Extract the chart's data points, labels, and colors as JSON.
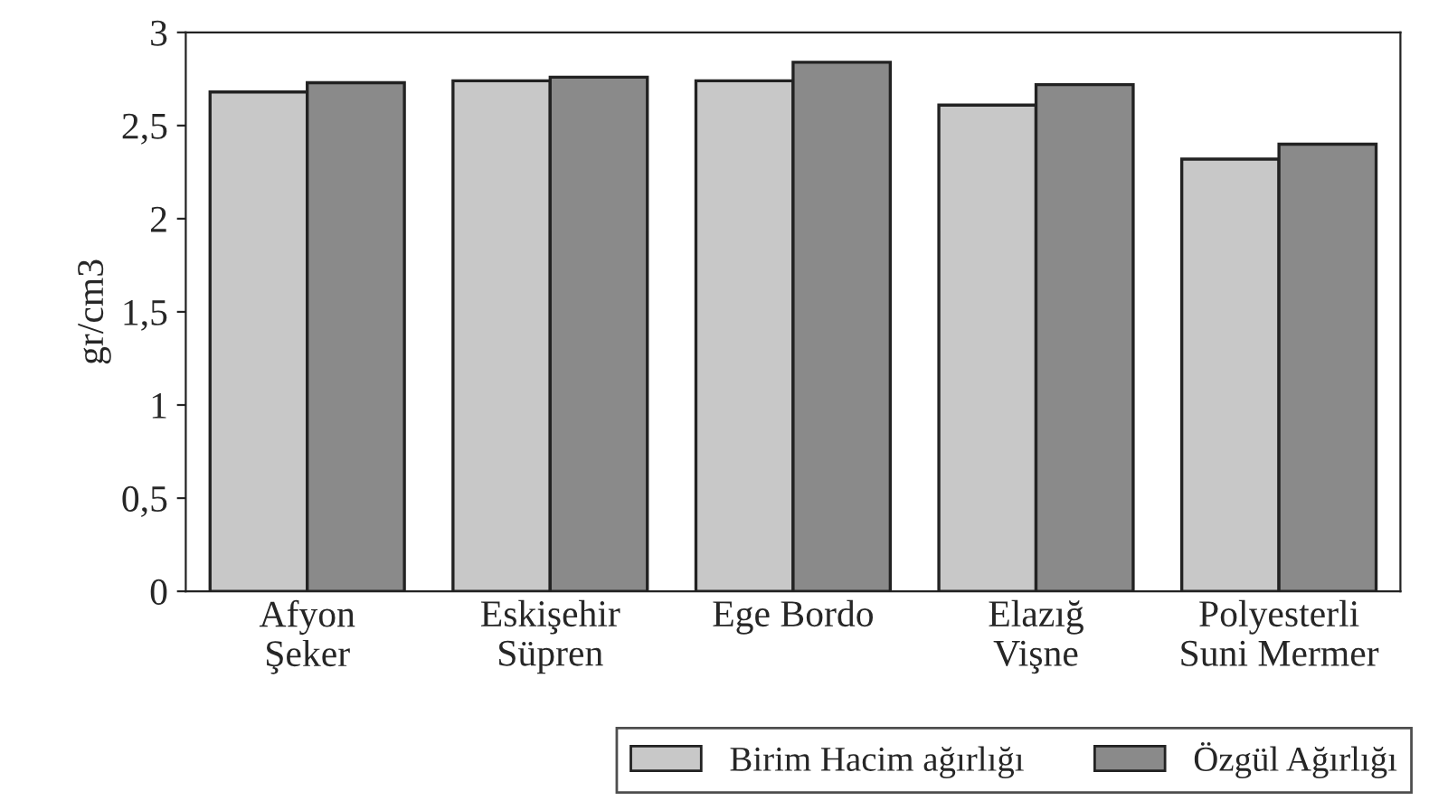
{
  "chart_data": {
    "type": "bar",
    "ylabel": "gr/cm3",
    "categories": [
      "Afyon\nŞeker",
      "Eskişehir\nSüpren",
      "Ege Bordo",
      "Elazığ\nVişne",
      "Polyesterli\nSuni Mermer"
    ],
    "series": [
      {
        "name": "Birim Hacim ağırlığı",
        "color": "#c8c8c8",
        "values": [
          2.68,
          2.74,
          2.74,
          2.61,
          2.32
        ]
      },
      {
        "name": "Özgül Ağırlığı",
        "color": "#8a8a8a",
        "values": [
          2.73,
          2.76,
          2.84,
          2.72,
          2.4
        ]
      }
    ],
    "ylim": [
      0,
      3
    ],
    "yticks": [
      0,
      {
        "value": 0.5,
        "label": "0,5"
      },
      1,
      {
        "value": 1.5,
        "label": "1,5"
      },
      2,
      {
        "value": 2.5,
        "label": "2,5"
      },
      3
    ],
    "grid": false,
    "legend": "bottom right"
  }
}
